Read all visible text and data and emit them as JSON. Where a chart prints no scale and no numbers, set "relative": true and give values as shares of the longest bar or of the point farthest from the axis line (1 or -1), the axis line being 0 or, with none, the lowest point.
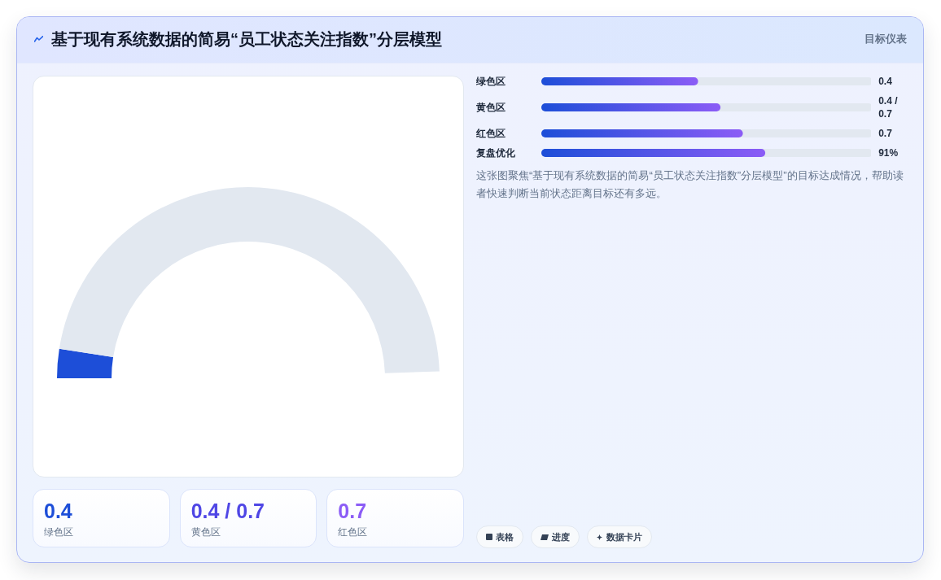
{
  "chart_data": [
    {
      "type": "other",
      "title": "基于现有系统数据的简易“员工状态关注指数”分层模型",
      "subtitle": "目标仪表"
    },
    {
      "type": "donut",
      "values": [
        5,
        95
      ],
      "colors": [
        "#1d4ed8",
        "#e2e8f0"
      ]
    },
    {
      "type": "bar",
      "orientation": "horizontal",
      "relative": true,
      "categories": [
        "绿色区",
        "黄色区",
        "红色区",
        "复盘优化"
      ],
      "values": [
        0.7,
        0.8,
        0.9,
        1
      ],
      "color": "#1d4ed8",
      "annotations": [
        "0.4",
        "0.4 / 0.7",
        "0.7",
        "91%",
        "这张图聚焦“基于现有系统数据的简易“员工状态关注指数”分层模型”的目标达成情况，帮助读者快速判断当前状态距离目标还有多远。"
      ]
    },
    {
      "type": "other",
      "categories": [
        "绿色区",
        "黄色区",
        "红色区"
      ],
      "value_labels": [
        "0.4",
        "0.4 / 0.7",
        "0.7"
      ]
    },
    {
      "type": "other",
      "categories": [
        "表格",
        "进度",
        "数据卡片"
      ]
    }
  ]
}
